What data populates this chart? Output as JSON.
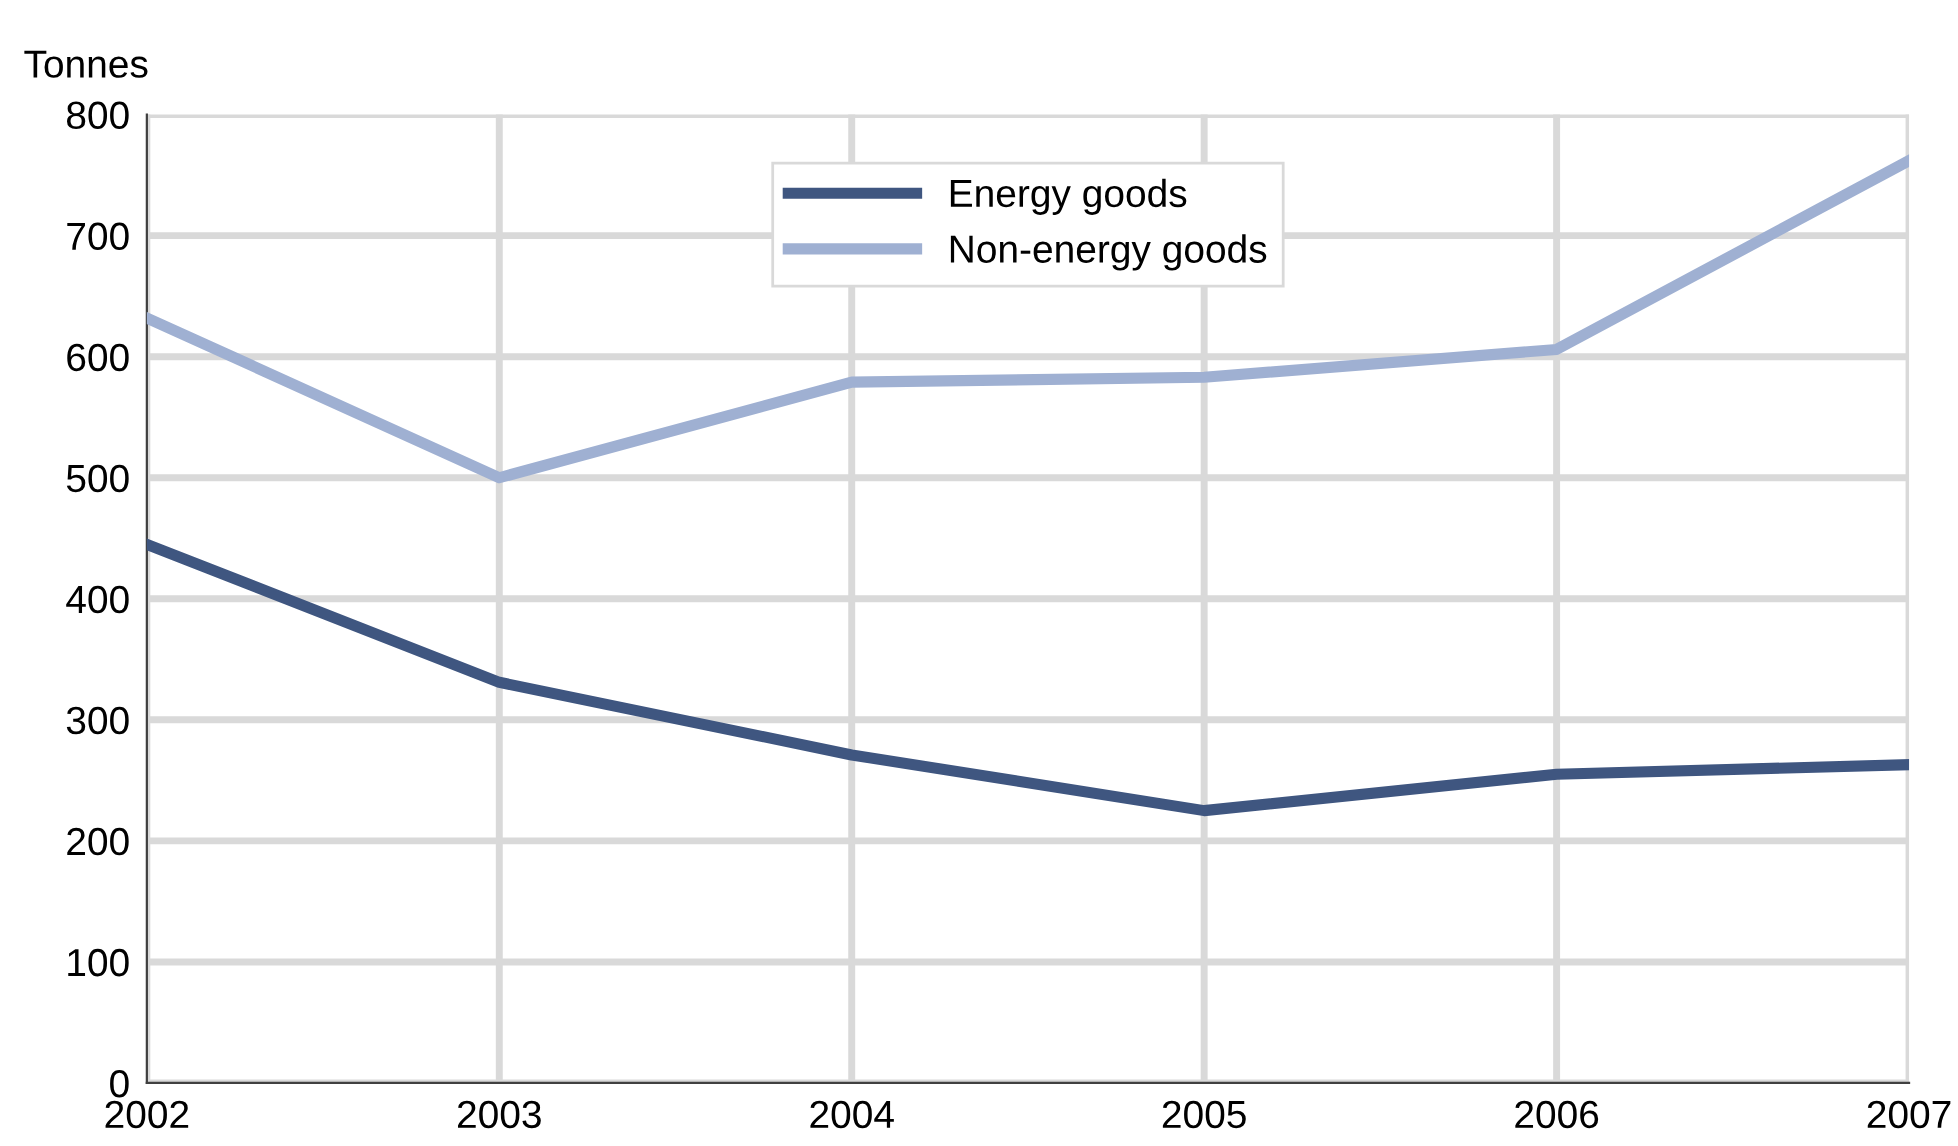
{
  "chart_data": {
    "type": "line",
    "ylabel": "Tonnes",
    "categories": [
      "2002",
      "2003",
      "2004",
      "2005",
      "2006",
      "2007"
    ],
    "series": [
      {
        "name": "Energy goods",
        "color": "#3f5680",
        "values": [
          445,
          331,
          271,
          225,
          255,
          263
        ]
      },
      {
        "name": "Non-energy goods",
        "color": "#9fb0d2",
        "values": [
          632,
          500,
          579,
          583,
          606,
          762
        ]
      }
    ],
    "ylim": [
      0,
      800
    ],
    "yticks": [
      0,
      100,
      200,
      300,
      400,
      500,
      600,
      700,
      800
    ],
    "grid": true,
    "legend": "top center",
    "marker": "none",
    "line_style": "solid"
  }
}
